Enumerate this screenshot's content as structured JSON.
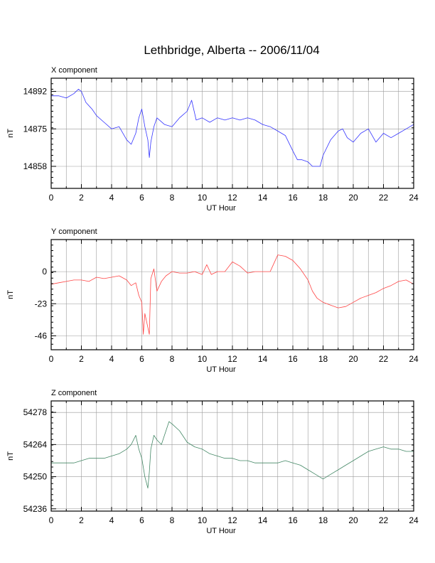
{
  "chart_data": {
    "title": "Lethbridge, Alberta -- 2006/11/04",
    "type": "line",
    "panels": [
      {
        "title": "X component",
        "type": "line",
        "xlabel": "UT Hour",
        "ylabel": "nT",
        "xlim": [
          0,
          24
        ],
        "xticks": [
          "0",
          "2",
          "4",
          "6",
          "8",
          "10",
          "12",
          "14",
          "16",
          "18",
          "20",
          "22",
          "24"
        ],
        "ylim": [
          14848,
          14898
        ],
        "yticks": [
          "14858",
          "14875",
          "14892"
        ],
        "grid": true,
        "color": "#3333ff",
        "series": [
          {
            "x": [
              0,
              0.5,
              1,
              1.5,
              1.8,
              2,
              2.3,
              2.7,
              3,
              3.5,
              4,
              4.5,
              5,
              5.3,
              5.6,
              5.8,
              6,
              6.2,
              6.4,
              6.5,
              6.6,
              6.8,
              7,
              7.5,
              8,
              8.5,
              9,
              9.3,
              9.6,
              10,
              10.5,
              11,
              11.5,
              12,
              12.5,
              13,
              13.5,
              14,
              14.5,
              15,
              15.5,
              16,
              16.3,
              16.6,
              17,
              17.3,
              17.5,
              17.8,
              18,
              18.5,
              19,
              19.3,
              19.6,
              20,
              20.5,
              21,
              21.5,
              22,
              22.5,
              23,
              23.5,
              24
            ],
            "y": [
              14890,
              14890,
              14889,
              14891,
              14893,
              14892,
              14887,
              14884,
              14881,
              14878,
              14875,
              14876,
              14870,
              14868,
              14873,
              14880,
              14884,
              14876,
              14870,
              14862,
              14869,
              14876,
              14880,
              14877,
              14876,
              14880,
              14883,
              14888,
              14879,
              14880,
              14878,
              14880,
              14879,
              14880,
              14879,
              14880,
              14879,
              14877,
              14876,
              14874,
              14872,
              14865,
              14861,
              14861,
              14860,
              14858,
              14858,
              14858,
              14863,
              14870,
              14874,
              14875,
              14871,
              14869,
              14873,
              14875,
              14869,
              14873,
              14871,
              14873,
              14875,
              14877
            ]
          }
        ]
      },
      {
        "title": "Y component",
        "type": "line",
        "xlabel": "UT Hour",
        "ylabel": "nT",
        "xlim": [
          0,
          24
        ],
        "xticks": [
          "0",
          "2",
          "4",
          "6",
          "8",
          "10",
          "12",
          "14",
          "16",
          "18",
          "20",
          "22",
          "24"
        ],
        "ylim": [
          -56,
          23
        ],
        "yticks": [
          "0",
          "-23",
          "-46"
        ],
        "grid": true,
        "color": "#ff4444",
        "series": [
          {
            "x": [
              0,
              0.5,
              1,
              1.5,
              2,
              2.5,
              3,
              3.5,
              4,
              4.5,
              5,
              5.3,
              5.6,
              5.8,
              6,
              6.1,
              6.2,
              6.4,
              6.5,
              6.6,
              6.8,
              7,
              7.3,
              7.6,
              8,
              8.5,
              9,
              9.5,
              10,
              10.3,
              10.6,
              11,
              11.5,
              12,
              12.5,
              13,
              13.5,
              14,
              14.5,
              15,
              15.5,
              16,
              16.5,
              17,
              17.3,
              17.6,
              18,
              18.5,
              19,
              19.5,
              20,
              20.5,
              21,
              21.5,
              22,
              22.5,
              23,
              23.5,
              24
            ],
            "y": [
              -9,
              -8,
              -7,
              -6,
              -6,
              -7,
              -4,
              -5,
              -4,
              -3,
              -6,
              -10,
              -8,
              -17,
              -22,
              -45,
              -30,
              -40,
              -45,
              -5,
              2,
              -14,
              -7,
              -3,
              0,
              -1,
              -1,
              0,
              -2,
              5,
              -2,
              0,
              0,
              7,
              4,
              -1,
              0,
              0,
              0,
              12,
              11,
              8,
              2,
              -6,
              -14,
              -19,
              -22,
              -24,
              -26,
              -25,
              -22,
              -19,
              -17,
              -15,
              -12,
              -10,
              -7,
              -6,
              -9
            ]
          }
        ]
      },
      {
        "title": "Z component",
        "type": "line",
        "xlabel": "UT Hour",
        "ylabel": "nT",
        "xlim": [
          0,
          24
        ],
        "xticks": [
          "0",
          "2",
          "4",
          "6",
          "8",
          "10",
          "12",
          "14",
          "16",
          "18",
          "20",
          "22",
          "24"
        ],
        "ylim": [
          54235,
          54283
        ],
        "yticks": [
          "54278",
          "54264",
          "54250",
          "54236"
        ],
        "grid": true,
        "color": "#448866",
        "series": [
          {
            "x": [
              0,
              0.5,
              1,
              1.5,
              2,
              2.5,
              3,
              3.5,
              4,
              4.5,
              5,
              5.3,
              5.6,
              5.8,
              6,
              6.2,
              6.4,
              6.5,
              6.6,
              6.8,
              7,
              7.3,
              7.6,
              7.8,
              8,
              8.5,
              9,
              9.5,
              10,
              10.5,
              11,
              11.5,
              12,
              12.5,
              13,
              13.5,
              14,
              14.5,
              15,
              15.5,
              16,
              16.5,
              17,
              17.5,
              18,
              18.5,
              19,
              19.5,
              20,
              20.5,
              21,
              21.5,
              22,
              22.5,
              23,
              23.5,
              24
            ],
            "y": [
              54256,
              54256,
              54256,
              54256,
              54257,
              54258,
              54258,
              54258,
              54259,
              54260,
              54262,
              54264,
              54268,
              54262,
              54258,
              54250,
              54245,
              54252,
              54262,
              54268,
              54266,
              54264,
              54270,
              54274,
              54273,
              54270,
              54265,
              54263,
              54262,
              54260,
              54259,
              54258,
              54258,
              54257,
              54257,
              54256,
              54256,
              54256,
              54256,
              54257,
              54256,
              54255,
              54253,
              54251,
              54249,
              54251,
              54253,
              54255,
              54257,
              54259,
              54261,
              54262,
              54263,
              54262,
              54262,
              54261,
              54261
            ]
          }
        ]
      }
    ]
  }
}
